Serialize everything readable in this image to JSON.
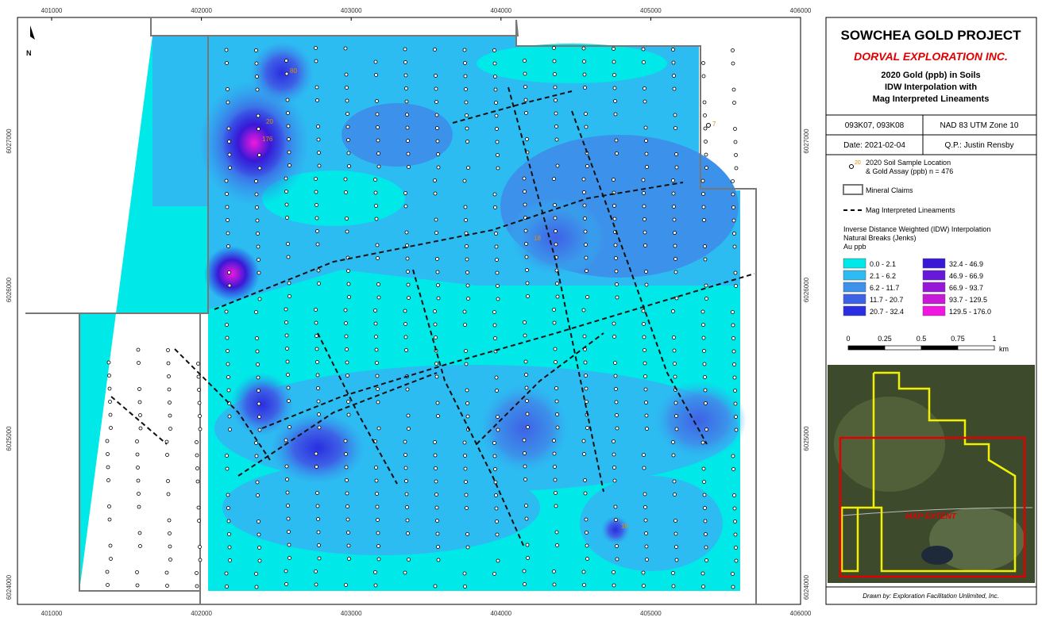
{
  "map": {
    "x_labels": [
      "401000",
      "402000",
      "403000",
      "404000",
      "405000",
      "406000"
    ],
    "y_labels": [
      "6027000",
      "6026000",
      "6025000",
      "6024000"
    ],
    "north": "N",
    "inset_label": "MAP EXTENT",
    "samples": [
      "176",
      "80",
      "20",
      "16",
      "18",
      "7"
    ]
  },
  "panel": {
    "title": "SOWCHEA GOLD PROJECT",
    "company": "DORVAL EXPLORATION INC.",
    "subtitle": [
      "2020 Gold (ppb) in Soils",
      "IDW Interpolation with",
      "Mag Interpreted Lineaments"
    ],
    "info": [
      [
        "093K07, 093K08",
        "NAD 83 UTM Zone 10"
      ],
      [
        "Date: 2021-02-04",
        "Q.P.: Justin Rensby"
      ]
    ],
    "legend": {
      "sample_symbol": "20",
      "sample_text": [
        "2020 Soil Sample Location",
        "& Gold Assay (ppb) n = 476"
      ],
      "claims": "Mineral Claims",
      "lineaments": "Mag Interpreted Lineaments",
      "idw_title": [
        "Inverse Distance Weighted (IDW) Interpolation",
        "Natural Breaks (Jenks)",
        "Au ppb"
      ],
      "classes": [
        {
          "label": "0.0 - 2.1",
          "color": "#00e8e8"
        },
        {
          "label": "2.1 - 6.2",
          "color": "#2cbcf2"
        },
        {
          "label": "6.2 - 11.7",
          "color": "#3c92ea"
        },
        {
          "label": "11.7 - 20.7",
          "color": "#3e62e6"
        },
        {
          "label": "20.7 - 32.4",
          "color": "#2a2ee0"
        },
        {
          "label": "32.4 - 46.9",
          "color": "#3a18d6"
        },
        {
          "label": "46.9 - 66.9",
          "color": "#6818d8"
        },
        {
          "label": "66.9 - 93.7",
          "color": "#9818d8"
        },
        {
          "label": "93.7 - 129.5",
          "color": "#c818d8"
        },
        {
          "label": "129.5 - 176.0",
          "color": "#f018e0"
        }
      ],
      "scale": [
        "0",
        "0.25",
        "0.5",
        "0.75",
        "1",
        "km"
      ]
    },
    "credit": "Drawn by: Exploration Facilitation Unlimited, Inc."
  }
}
